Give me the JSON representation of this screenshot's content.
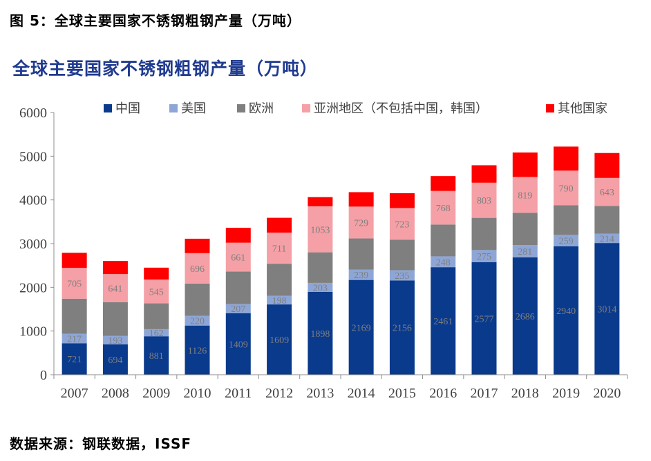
{
  "header": {
    "figure_label": "图 5：全球主要国家不锈钢粗钢产量（万吨）"
  },
  "footer": {
    "source": "数据来源：钢联数据，ISSF"
  },
  "colors": {
    "china": "#0a3a8c",
    "usa": "#8ea6d6",
    "europe": "#7f7f7f",
    "asia_other": "#f4a0a6",
    "others": "#ff0000",
    "axis": "#8c8c8c",
    "title": "#1f3a8f"
  },
  "chart_data": {
    "type": "bar",
    "stacked": true,
    "title": "全球主要国家不锈钢粗钢产量（万吨）",
    "xlabel": "",
    "ylabel": "",
    "ylim": [
      0,
      6000
    ],
    "yticks": [
      0,
      1000,
      2000,
      3000,
      4000,
      5000,
      6000
    ],
    "grid": false,
    "legend_position": "top",
    "categories": [
      "2007",
      "2008",
      "2009",
      "2010",
      "2011",
      "2012",
      "2013",
      "2014",
      "2015",
      "2016",
      "2017",
      "2018",
      "2019",
      "2020"
    ],
    "series": [
      {
        "key": "china",
        "name": "中国",
        "values": [
          721,
          694,
          881,
          1126,
          1409,
          1609,
          1898,
          2169,
          2156,
          2461,
          2577,
          2686,
          2940,
          3014
        ]
      },
      {
        "key": "usa",
        "name": "美国",
        "values": [
          217,
          193,
          162,
          220,
          207,
          198,
          203,
          239,
          235,
          248,
          275,
          281,
          259,
          214
        ]
      },
      {
        "key": "europe",
        "name": "欧洲",
        "values": [
          802,
          775,
          590,
          740,
          744,
          733,
          700,
          710,
          700,
          728,
          738,
          739,
          681,
          632
        ]
      },
      {
        "key": "asia_other",
        "name": "亚洲地区（不包括中国，韩国）",
        "values": [
          705,
          641,
          545,
          696,
          661,
          711,
          1053,
          729,
          723,
          768,
          803,
          819,
          790,
          643
        ]
      },
      {
        "key": "others",
        "name": "其他国家",
        "values": [
          345,
          300,
          272,
          330,
          340,
          340,
          210,
          330,
          340,
          340,
          400,
          560,
          550,
          570
        ]
      }
    ],
    "labeled_series": [
      "china",
      "usa",
      "europe",
      "asia_other"
    ]
  }
}
